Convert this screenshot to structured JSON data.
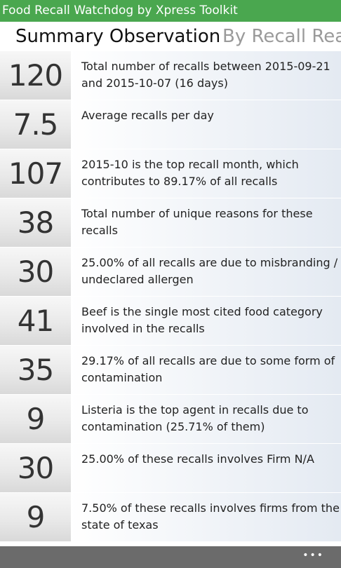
{
  "app": {
    "title": "Food Recall Watchdog by Xpress Toolkit"
  },
  "pivot": {
    "tabs": [
      {
        "label": "Summary Observation"
      },
      {
        "label": "By Recall Reaso"
      }
    ]
  },
  "rows": [
    {
      "number": "120",
      "text": "Total number of recalls between 2015-09-21 and 2015-10-07 (16 days)"
    },
    {
      "number": "7.5",
      "text": "Average recalls per day"
    },
    {
      "number": "107",
      "text": "2015-10 is the top recall month, which contributes to 89.17% of all recalls"
    },
    {
      "number": "38",
      "text": "Total number of unique reasons for these recalls"
    },
    {
      "number": "30",
      "text": "25.00% of all recalls are due to misbranding / undeclared allergen"
    },
    {
      "number": "41",
      "text": "Beef is the single most cited food category involved in the recalls"
    },
    {
      "number": "35",
      "text": "29.17% of all recalls are due to some form of contamination"
    },
    {
      "number": "9",
      "text": "Listeria is the top agent in recalls due to contamination (25.71% of them)"
    },
    {
      "number": "30",
      "text": "25.00% of these recalls involves Firm N/A"
    },
    {
      "number": "9",
      "text": "7.50% of these recalls involves firms from the state of texas"
    }
  ],
  "appbar": {
    "more": "•••",
    "more_icon": "ellipsis-icon"
  },
  "colors": {
    "titlebar": "#4aa74f",
    "appbar": "#6b6b6b"
  }
}
